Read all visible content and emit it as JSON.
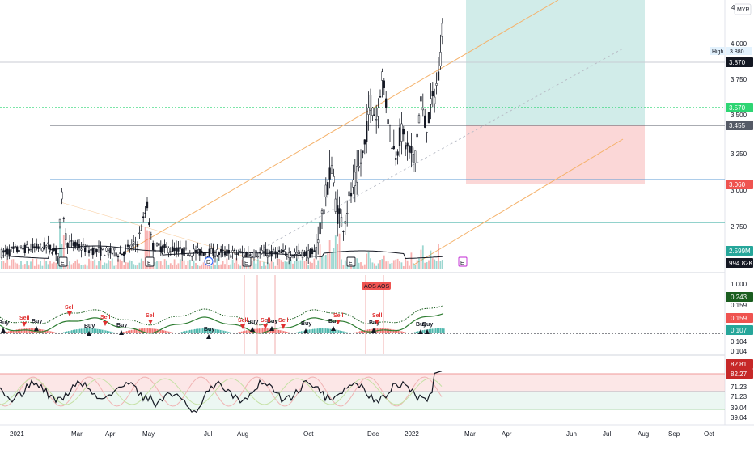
{
  "colors": {
    "up": "#26a69a",
    "down": "#ef5350",
    "candle": "#131722",
    "trend": "#f5b26b",
    "target": "#b2dfdb",
    "stop": "#f9caca",
    "dotted": "#2ed573",
    "buy": "#131722",
    "sell": "#e03131"
  },
  "header": {
    "currency": "MYR",
    "top_tick": "4"
  },
  "price_axis": {
    "ticks": [
      "4.000",
      "3.750",
      "3.500",
      "3.250",
      "3.000",
      "2.750"
    ],
    "high_label": "High",
    "high_value": "3.880",
    "badges": [
      {
        "name": "last-price-badge",
        "text": "3.870",
        "bg": "#131722"
      },
      {
        "name": "target-level-badge",
        "text": "3.570",
        "bg": "#2ed573"
      },
      {
        "name": "resistance-badge",
        "text": "3.455",
        "bg": "#555a66"
      },
      {
        "name": "stop-level-badge",
        "text": "3.060",
        "bg": "#ef5350"
      },
      {
        "name": "volume-badge",
        "text": "2.599M",
        "bg": "#26a69a"
      },
      {
        "name": "volume-ma-badge",
        "text": "994.82K",
        "bg": "#131722"
      }
    ]
  },
  "indicator1_axis": {
    "ticks": [
      "1.000",
      "0.159",
      "0.104",
      "0.104"
    ],
    "badges": [
      {
        "name": "ind1-badge-1",
        "text": "0.243",
        "bg": "#1b5e20"
      },
      {
        "name": "ind1-badge-2",
        "text": "0.159",
        "bg": "#ef5350"
      },
      {
        "name": "ind1-badge-3",
        "text": "0.107",
        "bg": "#26a69a"
      }
    ]
  },
  "indicator2_axis": {
    "ticks": [
      "71.23",
      "71.23",
      "39.04",
      "39.04"
    ],
    "badges": [
      {
        "name": "ind2-badge-1",
        "text": "82.81",
        "bg": "#c62828"
      },
      {
        "name": "ind2-badge-2",
        "text": "82.27",
        "bg": "#c62828"
      }
    ]
  },
  "time_axis": [
    "2021",
    "Mar",
    "Apr",
    "May",
    "Jul",
    "Aug",
    "Oct",
    "Dec",
    "2022",
    "Mar",
    "Apr",
    "Jun",
    "Jul",
    "Aug",
    "Sep",
    "Oct"
  ],
  "signals": {
    "buy": "Buy",
    "sell": "Sell",
    "alert": "AOS AOS"
  },
  "chart_data": {
    "type": "candlestick",
    "price_range": [
      2.6,
      4.05
    ],
    "last_close": 3.87,
    "levels": {
      "target": 3.57,
      "resistance": 3.455,
      "stop": 3.06,
      "support": 2.8
    },
    "volume": {
      "last": "2.599M",
      "ma": "994.82K"
    },
    "indicator1_values": [
      0.243,
      0.159,
      0.107
    ],
    "indicator2_values": [
      82.81,
      82.27
    ]
  }
}
